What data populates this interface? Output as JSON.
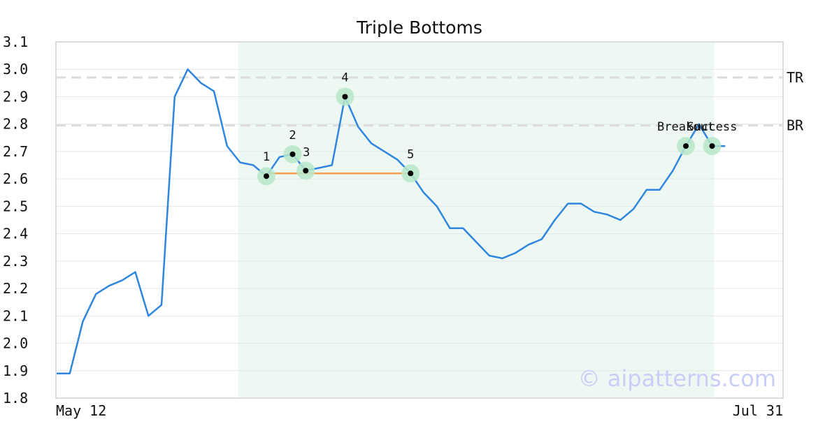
{
  "chart_data": {
    "type": "line",
    "title": "Triple Bottoms",
    "xlabel": "",
    "ylabel": "",
    "x_tick_labels": [
      "May 12",
      "Jul 31"
    ],
    "ylim": [
      1.8,
      3.1
    ],
    "y_ticks": [
      "1.8",
      "1.9",
      "2.0",
      "2.1",
      "2.2",
      "2.3",
      "2.4",
      "2.5",
      "2.6",
      "2.7",
      "2.8",
      "2.9",
      "3.0",
      "3.1"
    ],
    "grid": "horizontal",
    "series": [
      {
        "color": "#2f86de",
        "values": [
          1.89,
          1.89,
          2.08,
          2.18,
          2.21,
          2.23,
          2.26,
          2.1,
          2.14,
          2.9,
          3.0,
          2.95,
          2.92,
          2.72,
          2.66,
          2.65,
          2.61,
          2.68,
          2.69,
          2.63,
          2.64,
          2.65,
          2.9,
          2.79,
          2.73,
          2.7,
          2.67,
          2.62,
          2.55,
          2.5,
          2.42,
          2.42,
          2.37,
          2.32,
          2.31,
          2.33,
          2.36,
          2.38,
          2.45,
          2.51,
          2.51,
          2.48,
          2.47,
          2.45,
          2.49,
          2.56,
          2.56,
          2.63,
          2.72,
          2.8,
          2.72,
          2.72
        ]
      }
    ],
    "pattern_region": {
      "start_index": 14,
      "end_index": 50,
      "color": "#eef8f3"
    },
    "levels": [
      {
        "label": "TR",
        "value": 2.97
      },
      {
        "label": "BR",
        "value": 2.795
      }
    ],
    "support_line": {
      "start_index": 16,
      "end_index": 27,
      "value": 2.62,
      "color": "#f5a050"
    },
    "points": [
      {
        "label": "1",
        "index": 16,
        "value": 2.61
      },
      {
        "label": "2",
        "index": 18,
        "value": 2.69
      },
      {
        "label": "3",
        "index": 19,
        "value": 2.63
      },
      {
        "label": "4",
        "index": 22,
        "value": 2.9
      },
      {
        "label": "5",
        "index": 27,
        "value": 2.62
      },
      {
        "label": "Breakout",
        "index": 48,
        "value": 2.72
      },
      {
        "label": "Success",
        "index": 50,
        "value": 2.72
      }
    ],
    "watermark": "© aipatterns.com"
  }
}
